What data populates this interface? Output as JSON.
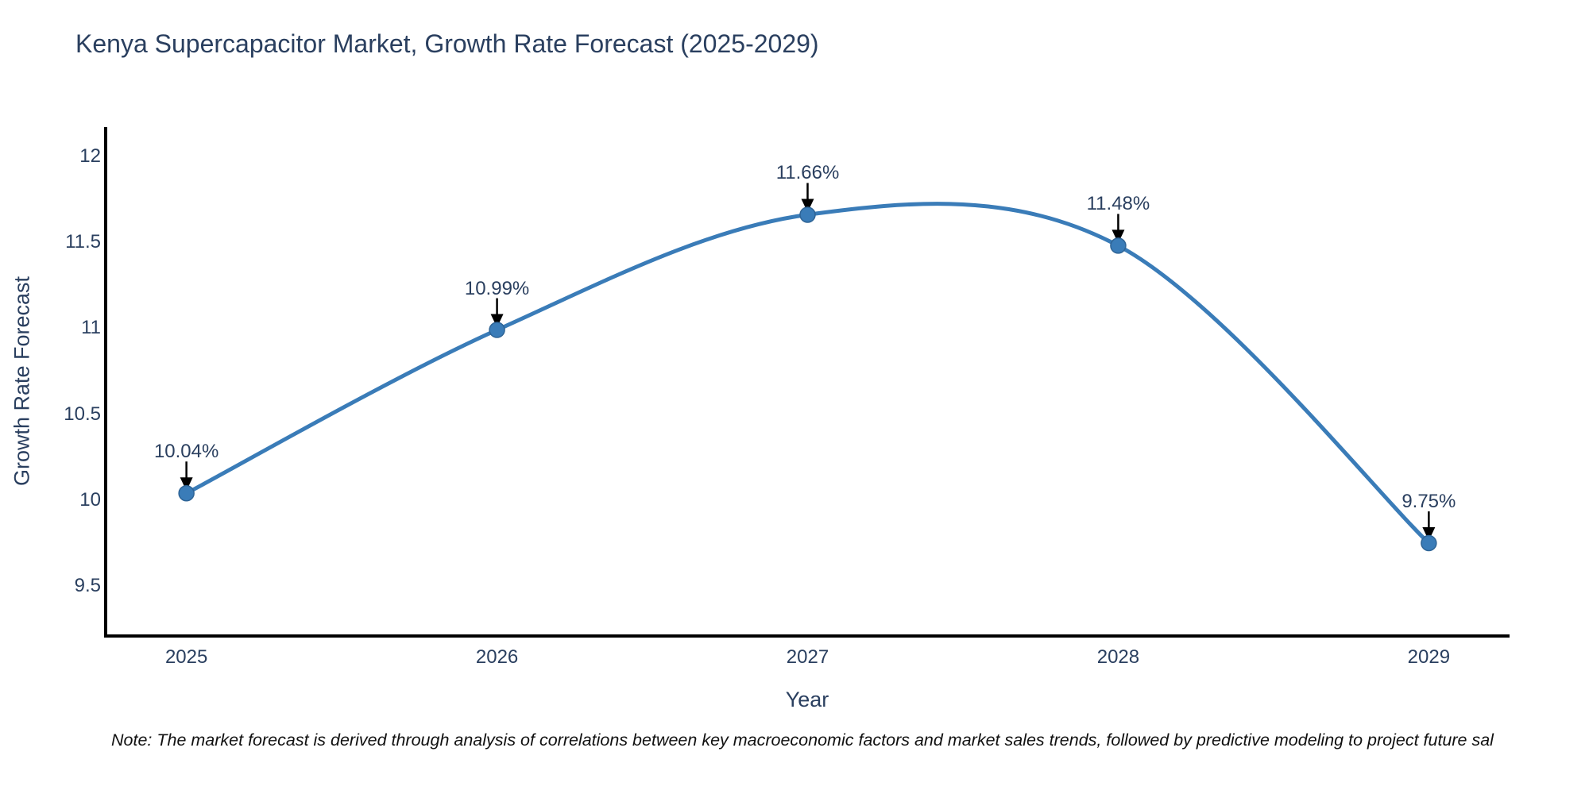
{
  "footer": {
    "note": "Note: The market forecast is derived through analysis of correlations between key macroeconomic factors and market sales trends, followed by predictive modeling to project future sal"
  },
  "colors": {
    "line": "#3a7cb8",
    "marker_fill": "#3a7cb8",
    "marker_edge": "#2e6496",
    "axis": "#000000",
    "arrow": "#000000",
    "text": "#2a3f5f",
    "note_text": "#111111",
    "background": "#ffffff"
  },
  "chart_data": {
    "type": "line",
    "title": "Kenya Supercapacitor Market, Growth Rate Forecast (2025-2029)",
    "xlabel": "Year",
    "ylabel": "Growth Rate Forecast",
    "x": [
      2025,
      2026,
      2027,
      2028,
      2029
    ],
    "values": [
      10.04,
      10.99,
      11.66,
      11.48,
      9.75
    ],
    "point_labels": [
      "10.04%",
      "10.99%",
      "11.66%",
      "11.48%",
      "9.75%"
    ],
    "xtick_labels": [
      "2025",
      "2026",
      "2027",
      "2028",
      "2029"
    ],
    "yticks": [
      9.5,
      10,
      10.5,
      11,
      11.5,
      12
    ],
    "ytick_labels": [
      "9.5",
      "10",
      "10.5",
      "11",
      "11.5",
      "12"
    ],
    "xlim": [
      2024.74,
      2029.26
    ],
    "ylim": [
      9.21,
      12.17
    ],
    "grid": false,
    "legend": "none",
    "line_shape": "spline",
    "annotation_style": "value label above each point with black down arrow"
  }
}
